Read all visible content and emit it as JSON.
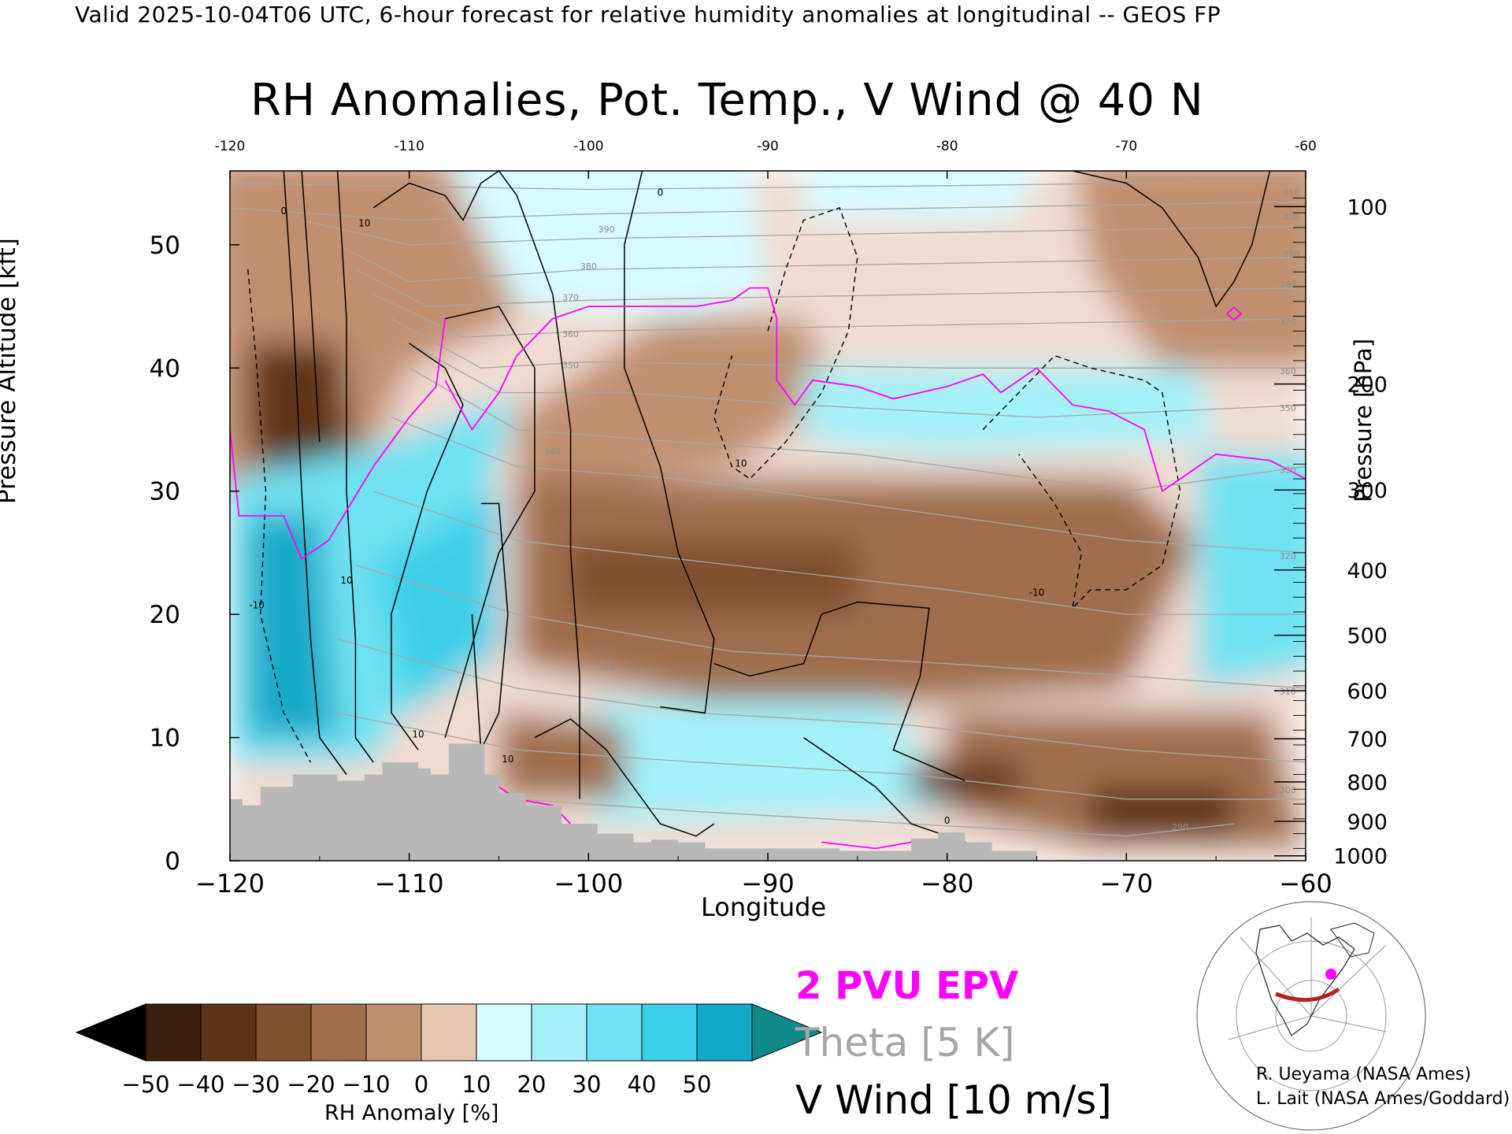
{
  "header": {
    "valid_line": "Valid 2025-10-04T06 UTC, 6-hour forecast for relative humidity anomalies at longitudinal -- GEOS FP"
  },
  "chart_data": {
    "type": "heatmap",
    "title": "RH Anomalies, Pot. Temp., V Wind @ 40 N",
    "xlabel": "Longitude",
    "ylabel": "Pressure Altitude [kft]",
    "ylabel_right": "Pressure [hPa]",
    "xlim": [
      -120,
      -60
    ],
    "ylim": [
      0,
      56
    ],
    "x_ticks": [
      "−120",
      "−110",
      "−100",
      "−90",
      "−80",
      "−70",
      "−60"
    ],
    "x_ticks_top": [
      "-120",
      "-110",
      "-100",
      "-90",
      "-80",
      "-70",
      "-60"
    ],
    "x_tick_values": [
      -120,
      -110,
      -100,
      -90,
      -80,
      -70,
      -60
    ],
    "y_ticks": [
      0,
      10,
      20,
      30,
      40,
      50
    ],
    "pressure_ticks": [
      {
        "label": "100",
        "kft": 53.1
      },
      {
        "label": "200",
        "kft": 38.7
      },
      {
        "label": "300",
        "kft": 30.1
      },
      {
        "label": "400",
        "kft": 23.6
      },
      {
        "label": "500",
        "kft": 18.3
      },
      {
        "label": "600",
        "kft": 13.8
      },
      {
        "label": "700",
        "kft": 9.9
      },
      {
        "label": "800",
        "kft": 6.4
      },
      {
        "label": "900",
        "kft": 3.2
      },
      {
        "label": "1000",
        "kft": 0.4
      }
    ],
    "colorbar": {
      "label": "RH Anomaly [%]",
      "ticks": [
        "−50",
        "−40",
        "−30",
        "−20",
        "−10",
        "0",
        "10",
        "20",
        "30",
        "40",
        "50"
      ],
      "colors": [
        "#3a1f0c",
        "#5e3418",
        "#80502f",
        "#a06e4d",
        "#c08f70",
        "#e6c9b5",
        "#d7fbff",
        "#a4f1fa",
        "#6ee2f2",
        "#3ccfe8",
        "#12a9c8"
      ],
      "under_color": "#000000",
      "over_color": "#0e8a8a"
    },
    "theta_labels": [
      {
        "x": -99,
        "y": 51,
        "text": "390"
      },
      {
        "x": -100,
        "y": 48,
        "text": "380"
      },
      {
        "x": -101,
        "y": 45.5,
        "text": "370"
      },
      {
        "x": -101,
        "y": 42.5,
        "text": "360"
      },
      {
        "x": -101,
        "y": 40,
        "text": "350"
      },
      {
        "x": -102,
        "y": 33,
        "text": "340"
      },
      {
        "x": -99,
        "y": 15.5,
        "text": "320"
      },
      {
        "x": -60.8,
        "y": 54,
        "text": "410"
      },
      {
        "x": -60.8,
        "y": 52,
        "text": "400"
      },
      {
        "x": -60.8,
        "y": 49,
        "text": "390"
      },
      {
        "x": -61,
        "y": 46.5,
        "text": "380"
      },
      {
        "x": -61,
        "y": 43.5,
        "text": "370"
      },
      {
        "x": -61,
        "y": 39.5,
        "text": "360"
      },
      {
        "x": -61,
        "y": 36.5,
        "text": "350"
      },
      {
        "x": -61,
        "y": 31.5,
        "text": "330"
      },
      {
        "x": -61,
        "y": 24.5,
        "text": "320"
      },
      {
        "x": -61,
        "y": 13.5,
        "text": "310"
      },
      {
        "x": -61,
        "y": 5.5,
        "text": "300"
      },
      {
        "x": -67,
        "y": 2.5,
        "text": "290"
      }
    ],
    "vwind_labels": [
      {
        "x": -117,
        "y": 52.5,
        "text": "0"
      },
      {
        "x": -112.5,
        "y": 51.5,
        "text": "10"
      },
      {
        "x": -113.5,
        "y": 22.5,
        "text": "10"
      },
      {
        "x": -118.5,
        "y": 20.5,
        "text": "-10"
      },
      {
        "x": -109.5,
        "y": 10,
        "text": "10"
      },
      {
        "x": -104.5,
        "y": 8,
        "text": "10"
      },
      {
        "x": -96,
        "y": 54,
        "text": "0"
      },
      {
        "x": -91.5,
        "y": 32,
        "text": "10"
      },
      {
        "x": -75,
        "y": 21.5,
        "text": "-10"
      },
      {
        "x": -80,
        "y": 3,
        "text": "0"
      }
    ],
    "legend": {
      "epv": "2 PVU EPV",
      "theta": "Theta [5 K]",
      "vwind": "V Wind [10 m/s]",
      "epv_color": "#ff00ff",
      "theta_color": "#a6a6a6"
    },
    "grid": false,
    "terrain_color": "#b8b8b8"
  },
  "credits": {
    "line1": "R. Ueyama (NASA Ames)",
    "line2": "L. Lait (NASA Ames/Goddard)"
  }
}
